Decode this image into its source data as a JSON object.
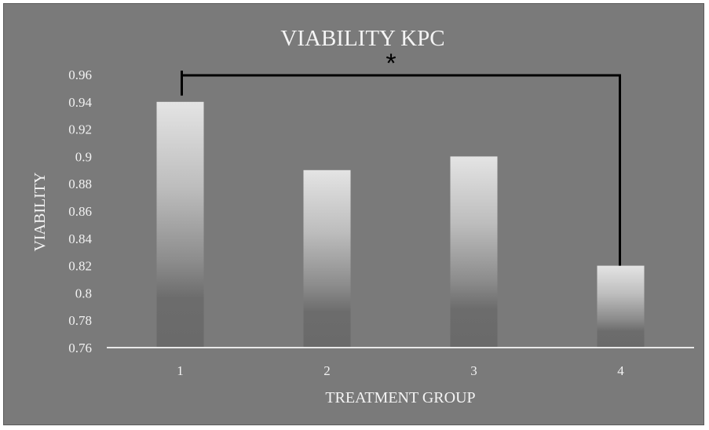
{
  "chart_data": {
    "type": "bar",
    "title": "VIABILITY KPC",
    "xlabel": "TREATMENT GROUP",
    "ylabel": "VIABILITY",
    "categories": [
      "1",
      "2",
      "3",
      "4"
    ],
    "values": [
      0.94,
      0.89,
      0.9,
      0.82
    ],
    "ylim": [
      0.76,
      0.96
    ],
    "yticks": [
      "0.76",
      "0.78",
      "0.8",
      "0.82",
      "0.84",
      "0.86",
      "0.88",
      "0.9",
      "0.92",
      "0.94",
      "0.96"
    ],
    "grid": false,
    "legend": "none",
    "significance": {
      "from_category": "1",
      "to_category": "4",
      "label": "*"
    },
    "colors": {
      "background": "#7a7a7a",
      "bar_top": "#d6d6d6",
      "bar_bottom": "#6a6a6a",
      "axis": "#e6e6e6",
      "text": "#f2f2f2",
      "bracket": "#000000"
    }
  }
}
